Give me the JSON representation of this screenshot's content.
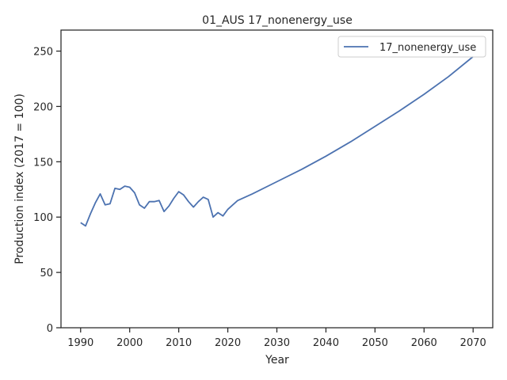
{
  "chart_data": {
    "type": "line",
    "title": "01_AUS 17_nonenergy_use",
    "xlabel": "Year",
    "ylabel": "Production index (2017 = 100)",
    "xlim": [
      1986,
      2074
    ],
    "ylim": [
      0,
      269
    ],
    "xticks": [
      1990,
      2000,
      2010,
      2020,
      2030,
      2040,
      2050,
      2060,
      2070
    ],
    "yticks": [
      0,
      50,
      100,
      150,
      200,
      250
    ],
    "grid": false,
    "legend_position": "top-right",
    "colors": {
      "series": "#4c72b0",
      "axes": "#262626"
    },
    "series": [
      {
        "name": "17_nonenergy_use",
        "x": [
          1990,
          1991,
          1992,
          1993,
          1994,
          1995,
          1996,
          1997,
          1998,
          1999,
          2000,
          2001,
          2002,
          2003,
          2004,
          2005,
          2006,
          2007,
          2008,
          2009,
          2010,
          2011,
          2012,
          2013,
          2014,
          2015,
          2016,
          2017,
          2018,
          2019,
          2020,
          2021,
          2022,
          2025,
          2030,
          2035,
          2040,
          2045,
          2050,
          2055,
          2060,
          2065,
          2070
        ],
        "y": [
          95,
          92,
          103,
          113,
          121,
          111,
          112,
          126,
          125,
          128,
          127,
          122,
          111,
          108,
          114,
          114,
          115,
          105,
          110,
          117,
          123,
          120,
          114,
          109,
          114,
          118,
          116,
          100,
          104,
          101,
          107,
          111,
          115,
          121,
          132,
          143,
          155,
          168,
          182,
          196,
          211,
          227,
          245
        ]
      }
    ]
  }
}
